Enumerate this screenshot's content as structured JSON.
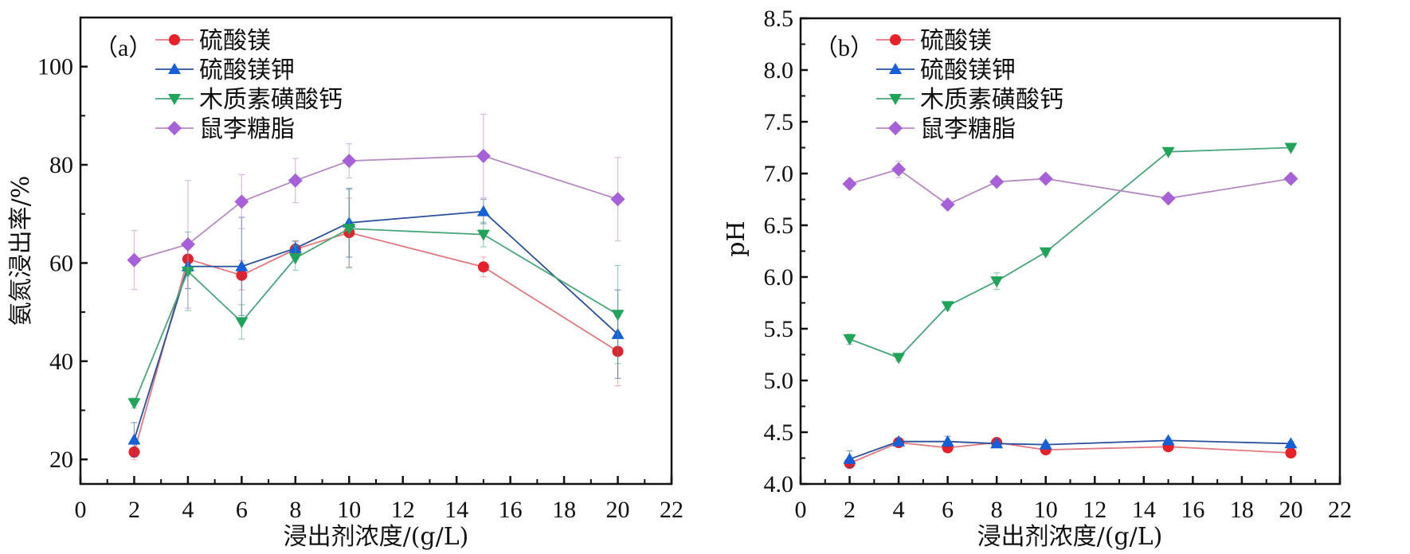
{
  "chart_data": [
    {
      "id": "a",
      "type": "line",
      "panel_label": "（a）",
      "title": "",
      "xlabel": "浸出剂浓度/(g/L)",
      "ylabel": "氨氮浸出率/%",
      "xlim": [
        0,
        22
      ],
      "ylim": [
        15,
        110
      ],
      "xticks": [
        0,
        2,
        4,
        6,
        8,
        10,
        12,
        14,
        16,
        18,
        20,
        22
      ],
      "yticks": [
        20,
        40,
        60,
        80,
        100
      ],
      "legend_position": "top-left",
      "grid": false,
      "x": [
        2,
        4,
        6,
        8,
        10,
        15,
        20
      ],
      "series": [
        {
          "name": "硫酸镁",
          "marker": "circle",
          "color": "#e8202a",
          "line_color": "#e07a80",
          "values": [
            21.5,
            60.8,
            57.5,
            62.8,
            66.2,
            59.2,
            42.0
          ],
          "errors": [
            1.5,
            3.0,
            3.0,
            1.5,
            7.0,
            2.0,
            7.0
          ]
        },
        {
          "name": "硫酸镁钾",
          "marker": "triangle-up",
          "color": "#1560d8",
          "line_color": "#2a4f9a",
          "values": [
            24.0,
            59.3,
            59.3,
            63.0,
            68.2,
            70.5,
            45.5
          ],
          "errors": [
            3.5,
            4.5,
            10.0,
            1.5,
            7.0,
            2.5,
            9.0
          ]
        },
        {
          "name": "木质素磺酸钙",
          "marker": "triangle-down",
          "color": "#1fa45a",
          "line_color": "#4aa57a",
          "values": [
            31.5,
            58.3,
            48.0,
            61.0,
            67.0,
            65.8,
            49.5
          ],
          "errors": [
            1.0,
            8.0,
            3.5,
            2.5,
            8.0,
            2.5,
            10.0
          ]
        },
        {
          "name": "鼠李糖脂",
          "marker": "diamond",
          "color": "#a660d8",
          "line_color": "#b58ac0",
          "values": [
            60.6,
            63.8,
            72.5,
            76.8,
            80.8,
            81.8,
            73.0
          ],
          "errors": [
            6.0,
            13.0,
            5.5,
            4.5,
            3.5,
            8.5,
            8.5
          ]
        }
      ]
    },
    {
      "id": "b",
      "type": "line",
      "panel_label": "（b）",
      "title": "",
      "xlabel": "浸出剂浓度/(g/L)",
      "ylabel": "pH",
      "xlim": [
        0,
        22
      ],
      "ylim": [
        4.0,
        8.5
      ],
      "xticks": [
        0,
        2,
        4,
        6,
        8,
        10,
        12,
        14,
        16,
        18,
        20,
        22
      ],
      "yticks": [
        4.0,
        4.5,
        5.0,
        5.5,
        6.0,
        6.5,
        7.0,
        7.5,
        8.0,
        8.5
      ],
      "ytick_labels": [
        "4.0",
        "4.5",
        "5.0",
        "5.5",
        "6.0",
        "6.5",
        "7.0",
        "7.5",
        "8.0",
        "8.5"
      ],
      "legend_position": "top-center",
      "grid": false,
      "x": [
        2,
        4,
        6,
        8,
        10,
        15,
        20
      ],
      "series": [
        {
          "name": "硫酸镁",
          "marker": "circle",
          "color": "#e8202a",
          "line_color": "#e07a80",
          "values": [
            4.2,
            4.4,
            4.35,
            4.4,
            4.33,
            4.36,
            4.3
          ],
          "errors": [
            0.03,
            0.03,
            0.03,
            0.02,
            0.02,
            0.02,
            0.03
          ]
        },
        {
          "name": "硫酸镁钾",
          "marker": "triangle-up",
          "color": "#1560d8",
          "line_color": "#2a4f9a",
          "values": [
            4.24,
            4.41,
            4.41,
            4.39,
            4.38,
            4.42,
            4.39
          ],
          "errors": [
            0.08,
            0.03,
            0.05,
            0.02,
            0.02,
            0.02,
            0.02
          ]
        },
        {
          "name": "木质素磺酸钙",
          "marker": "triangle-down",
          "color": "#1fa45a",
          "line_color": "#4aa57a",
          "values": [
            5.4,
            5.22,
            5.72,
            5.96,
            6.24,
            7.21,
            7.25
          ],
          "errors": [
            0.05,
            0.03,
            0.04,
            0.08,
            0.03,
            0.02,
            0.02
          ]
        },
        {
          "name": "鼠李糖脂",
          "marker": "diamond",
          "color": "#a660d8",
          "line_color": "#b58ac0",
          "values": [
            6.9,
            7.04,
            6.7,
            6.92,
            6.95,
            6.76,
            6.95
          ],
          "errors": [
            0.03,
            0.08,
            0.03,
            0.02,
            0.02,
            0.02,
            0.02
          ]
        }
      ]
    }
  ]
}
